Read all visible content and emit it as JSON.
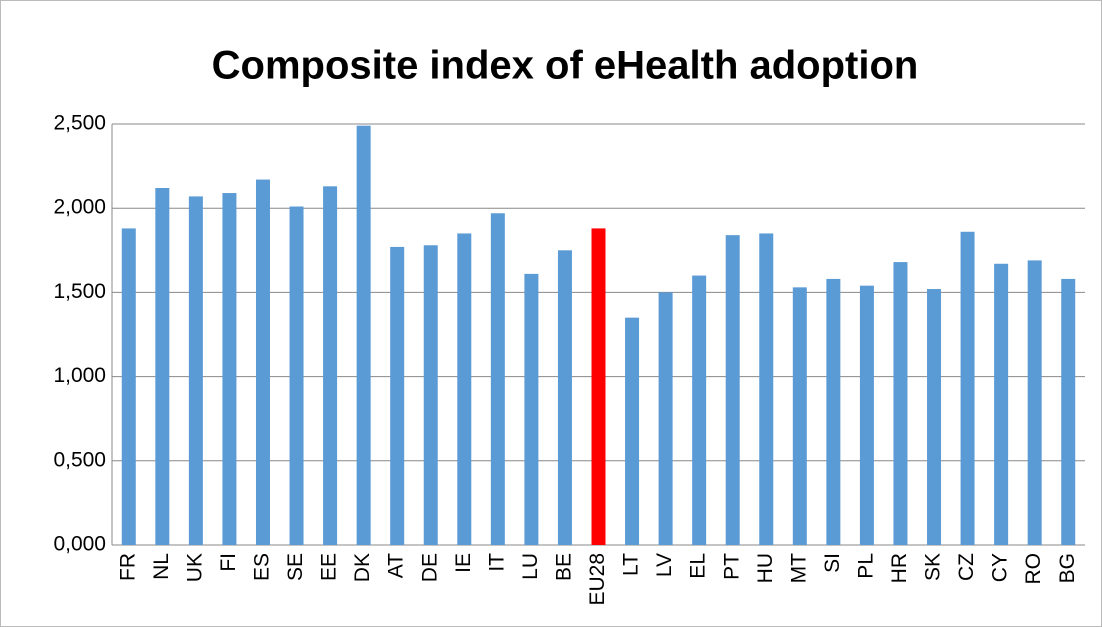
{
  "chart_data": {
    "type": "bar",
    "title": "Composite index of eHealth adoption",
    "categories": [
      "FR",
      "NL",
      "UK",
      "FI",
      "ES",
      "SE",
      "EE",
      "DK",
      "AT",
      "DE",
      "IE",
      "IT",
      "LU",
      "BE",
      "EU28",
      "LT",
      "LV",
      "EL",
      "PT",
      "HU",
      "MT",
      "SI",
      "PL",
      "HR",
      "SK",
      "CZ",
      "CY",
      "RO",
      "BG"
    ],
    "values": [
      1.88,
      2.12,
      2.07,
      2.09,
      2.17,
      2.01,
      2.13,
      2.49,
      1.77,
      1.78,
      1.85,
      1.97,
      1.61,
      1.75,
      1.88,
      1.35,
      1.5,
      1.6,
      1.84,
      1.85,
      1.53,
      1.58,
      1.54,
      1.68,
      1.52,
      1.86,
      1.67,
      1.69,
      1.58
    ],
    "colors": [
      "#5b9bd5",
      "#5b9bd5",
      "#5b9bd5",
      "#5b9bd5",
      "#5b9bd5",
      "#5b9bd5",
      "#5b9bd5",
      "#5b9bd5",
      "#5b9bd5",
      "#5b9bd5",
      "#5b9bd5",
      "#5b9bd5",
      "#5b9bd5",
      "#5b9bd5",
      "#ff0000",
      "#5b9bd5",
      "#5b9bd5",
      "#5b9bd5",
      "#5b9bd5",
      "#5b9bd5",
      "#5b9bd5",
      "#5b9bd5",
      "#5b9bd5",
      "#5b9bd5",
      "#5b9bd5",
      "#5b9bd5",
      "#5b9bd5",
      "#5b9bd5",
      "#5b9bd5"
    ],
    "ylim": [
      0,
      2.5
    ],
    "yticks": [
      {
        "value": 0,
        "label": "0,000"
      },
      {
        "value": 0.5,
        "label": "0,500"
      },
      {
        "value": 1,
        "label": "1,000"
      },
      {
        "value": 1.5,
        "label": "1,500"
      },
      {
        "value": 2,
        "label": "2,000"
      },
      {
        "value": 2.5,
        "label": "2,500"
      }
    ],
    "grid": true
  }
}
